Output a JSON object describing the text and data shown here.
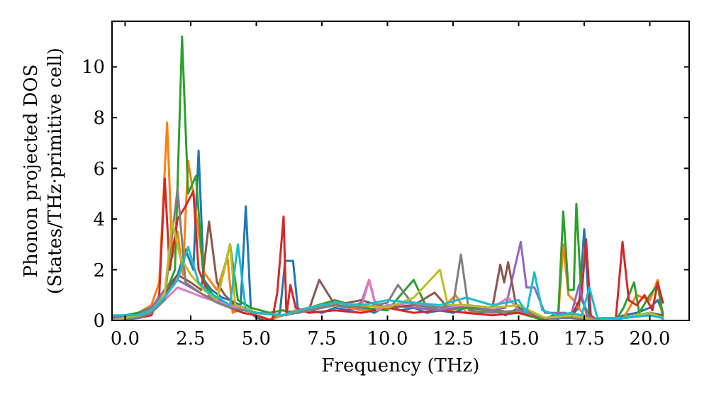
{
  "chart_data": {
    "type": "line",
    "xlabel": "Frequency (THz)",
    "ylabel": "Phonon projected DOS\n(States/THz·primitive cell)",
    "xlim": [
      -0.5,
      21.5
    ],
    "ylim": [
      0,
      11.8
    ],
    "xticks": [
      {
        "value": 0,
        "label": "0.0"
      },
      {
        "value": 2.5,
        "label": "2.5"
      },
      {
        "value": 5,
        "label": "5.0"
      },
      {
        "value": 7.5,
        "label": "7.5"
      },
      {
        "value": 10,
        "label": "10.0"
      },
      {
        "value": 12.5,
        "label": "12.5"
      },
      {
        "value": 15,
        "label": "15.0"
      },
      {
        "value": 17.5,
        "label": "17.5"
      },
      {
        "value": 20,
        "label": "20.0"
      }
    ],
    "yticks": [
      0,
      2,
      4,
      6,
      8,
      10
    ],
    "grid": false,
    "marker": "none",
    "line_style": "solid",
    "series": [
      {
        "color": "#1f77b4",
        "x": [
          -0.5,
          0,
          0.5,
          1,
          1.5,
          2,
          2.3,
          2.6,
          2.8,
          3,
          3.3,
          3.7,
          4,
          4.4,
          4.6,
          4.8,
          5,
          5.5,
          5.9,
          6.1,
          6.4,
          6.6,
          7,
          7.5,
          8,
          8.5,
          9,
          9.5,
          10,
          10.5,
          11,
          11.5,
          12,
          12.5,
          13,
          13.5,
          14,
          14.5,
          15,
          15.5,
          16,
          16.3,
          16.7,
          17,
          17.3,
          17.5,
          17.7,
          18,
          18.5,
          19,
          19.5,
          20,
          20.3,
          20.5
        ],
        "values": [
          0.2,
          0.1,
          0.3,
          0.5,
          1.2,
          1.8,
          2.8,
          2.0,
          6.7,
          1.6,
          1.2,
          0.9,
          0.8,
          0.6,
          4.5,
          0.3,
          0.1,
          0.0,
          0.3,
          2.35,
          2.35,
          0.3,
          0.4,
          0.3,
          0.5,
          0.4,
          0.5,
          0.3,
          0.6,
          0.4,
          0.5,
          0.3,
          0.4,
          0.3,
          0.5,
          0.3,
          0.4,
          0.2,
          0.5,
          0.3,
          0,
          0.2,
          0.3,
          0.2,
          0.5,
          3.6,
          0.2,
          0,
          0,
          0.2,
          0.3,
          0.5,
          0.8,
          0.3
        ]
      },
      {
        "color": "#ff7f0e",
        "x": [
          -0.5,
          0.5,
          1,
          1.3,
          1.6,
          1.8,
          2,
          2.2,
          2.4,
          2.6,
          3,
          3.5,
          3.9,
          4.1,
          4.5,
          5,
          5.5,
          6,
          6.5,
          7,
          8,
          9,
          10,
          11,
          12,
          12.6,
          13,
          14,
          15,
          16,
          16.5,
          16.7,
          16.9,
          17.1,
          17.5,
          18,
          19,
          19.5,
          20,
          20.3,
          20.5
        ],
        "values": [
          0.1,
          0.3,
          0.6,
          1.5,
          7.8,
          2.5,
          3.5,
          1.8,
          6.3,
          5.0,
          1.9,
          1.2,
          2.5,
          0.3,
          0.5,
          0.2,
          0,
          0.2,
          0.4,
          0.5,
          0.6,
          0.4,
          0.5,
          0.6,
          0.4,
          1.0,
          0.3,
          0.4,
          0.3,
          0,
          0,
          3.0,
          1.0,
          0.8,
          0.2,
          0,
          0.1,
          1.0,
          0.8,
          1.6,
          0
        ]
      },
      {
        "color": "#2ca02c",
        "x": [
          -0.5,
          0.5,
          1,
          1.5,
          1.9,
          2.17,
          2.4,
          2.7,
          3,
          3.5,
          4,
          4.3,
          4.8,
          5.5,
          6,
          6.5,
          7,
          8,
          9,
          10,
          11,
          11.5,
          12,
          13,
          14,
          15,
          16,
          16.5,
          16.7,
          16.9,
          17.1,
          17.2,
          17.4,
          17.7,
          18,
          18.7,
          19,
          19.4,
          19.6,
          20,
          20.3,
          20.5
        ],
        "values": [
          0.1,
          0.3,
          0.5,
          1.0,
          2.0,
          11.2,
          5.0,
          5.7,
          1.5,
          0.8,
          3.0,
          0.8,
          0.5,
          0.3,
          0.4,
          0.3,
          0.5,
          0.8,
          0.5,
          0.4,
          1.6,
          0.5,
          0.4,
          0.5,
          0.4,
          0.3,
          0,
          0,
          4.3,
          1.2,
          1.2,
          4.6,
          0.8,
          0.2,
          0,
          0,
          0.5,
          1.5,
          0.3,
          1.0,
          1.4,
          0.2
        ]
      },
      {
        "color": "#d62728",
        "x": [
          -0.5,
          0.5,
          1,
          1.3,
          1.51,
          1.7,
          2,
          2.3,
          2.6,
          2.8,
          3.2,
          3.6,
          4,
          4.5,
          5,
          5.6,
          5.8,
          6.04,
          6.15,
          6.3,
          6.5,
          7,
          8,
          9,
          10,
          11,
          12,
          13,
          14,
          15,
          16,
          17,
          17.4,
          17.57,
          17.75,
          18,
          18.7,
          18.96,
          19.2,
          19.5,
          19.8,
          20.1,
          20.3,
          20.5
        ],
        "values": [
          0,
          0.1,
          0.2,
          1.0,
          5.6,
          2.0,
          4.0,
          4.5,
          5.1,
          2.0,
          1.0,
          0.8,
          0.5,
          0.3,
          0.2,
          0,
          1.1,
          4.1,
          0.2,
          1.4,
          0.5,
          0.3,
          0.4,
          0.3,
          0.5,
          0.3,
          0.4,
          0.3,
          0.2,
          0.3,
          0.1,
          0.1,
          1.0,
          3.2,
          0.2,
          0,
          0,
          3.1,
          0.8,
          0.6,
          1.0,
          0.4,
          1.5,
          0.7
        ]
      },
      {
        "color": "#9467bd",
        "x": [
          -0.5,
          0.5,
          1,
          1.5,
          2,
          2.5,
          3,
          3.5,
          4,
          4.5,
          5,
          6,
          7,
          8,
          8.5,
          9,
          9.3,
          9.6,
          10,
          11,
          12,
          13,
          14,
          14.5,
          15.08,
          15.3,
          15.6,
          16,
          16.8,
          17,
          17.3,
          17.6,
          18,
          19,
          20,
          20.5
        ],
        "values": [
          0.1,
          0.2,
          0.5,
          1.2,
          1.6,
          1.3,
          1.0,
          0.8,
          0.6,
          0.5,
          0.3,
          0.2,
          0.4,
          0.6,
          0.5,
          0.7,
          1.6,
          0.4,
          0.6,
          0.5,
          0.4,
          0.6,
          0.4,
          0.5,
          3.1,
          1.3,
          1.3,
          0.3,
          0.3,
          0.2,
          1.4,
          0.2,
          0,
          0.1,
          0.3,
          0.2
        ]
      },
      {
        "color": "#8c564b",
        "x": [
          -0.5,
          0.5,
          1,
          1.5,
          2,
          2.5,
          2.9,
          3.2,
          3.5,
          3.8,
          4.2,
          5,
          6,
          7,
          7.4,
          8,
          9,
          10,
          11,
          11.8,
          12.3,
          13,
          14,
          14.3,
          14.45,
          14.6,
          14.9,
          15.5,
          16,
          17,
          18,
          19,
          20,
          20.5
        ],
        "values": [
          0,
          0.2,
          0.4,
          1.0,
          1.8,
          1.5,
          1.2,
          3.9,
          1.5,
          1.0,
          0.6,
          0.3,
          0.2,
          0.4,
          1.6,
          0.6,
          0.8,
          0.5,
          0.6,
          1.1,
          0.5,
          0.6,
          0.5,
          2.2,
          1.5,
          2.3,
          0.6,
          0.3,
          0.1,
          0.2,
          0,
          0.1,
          0.3,
          0.2
        ]
      },
      {
        "color": "#e377c2",
        "x": [
          -0.5,
          0.5,
          1,
          1.5,
          2,
          2.5,
          3,
          4,
          5,
          6,
          7,
          8,
          9,
          9.3,
          9.6,
          10,
          11,
          12,
          13,
          14,
          14.6,
          15,
          16,
          17,
          18,
          19
        ],
        "values": [
          0,
          0.2,
          0.4,
          0.8,
          1.3,
          1.1,
          0.9,
          0.6,
          0.3,
          0.2,
          0.5,
          0.7,
          0.5,
          1.6,
          0.4,
          0.6,
          0.7,
          0.5,
          0.6,
          0.5,
          0.9,
          0.4,
          0.1,
          0.1,
          0,
          0.1
        ]
      },
      {
        "color": "#7f7f7f",
        "x": [
          -0.5,
          0.5,
          1,
          1.5,
          2,
          2.3,
          2.7,
          3,
          3.5,
          4,
          5,
          6,
          7,
          8,
          9,
          10,
          10.4,
          11,
          12,
          12.5,
          12.8,
          13.1,
          14,
          15,
          16,
          17,
          18,
          19,
          20,
          20.5
        ],
        "values": [
          0,
          0.1,
          0.3,
          0.8,
          5.2,
          1.5,
          1.2,
          1.0,
          0.7,
          0.5,
          0.3,
          0.2,
          0.4,
          0.6,
          0.5,
          0.7,
          1.4,
          0.6,
          0.5,
          0.6,
          2.6,
          0.4,
          0.3,
          0.4,
          0.1,
          0.1,
          0,
          0.1,
          0.2,
          0.1
        ]
      },
      {
        "color": "#bcbd22",
        "x": [
          -0.5,
          0.5,
          1,
          1.5,
          1.8,
          2.1,
          2.5,
          3,
          3.5,
          4,
          4.2,
          4.6,
          5,
          6,
          7,
          8,
          9,
          10,
          11,
          12,
          12.3,
          13,
          14,
          15,
          16,
          17,
          18,
          19,
          20,
          20.5
        ],
        "values": [
          0,
          0.2,
          0.4,
          1.0,
          3.9,
          2.5,
          1.8,
          1.2,
          0.8,
          3.0,
          0.6,
          0.5,
          0.3,
          0.2,
          0.5,
          0.7,
          0.6,
          0.5,
          0.9,
          2.0,
          0.6,
          0.6,
          0.5,
          0.6,
          0.1,
          0.2,
          0,
          0.1,
          0.3,
          0.1
        ]
      },
      {
        "color": "#17becf",
        "x": [
          -0.5,
          0.5,
          1,
          1.5,
          2,
          2.4,
          2.8,
          3.2,
          3.7,
          4,
          4.3,
          4.6,
          5,
          6,
          7,
          8,
          9,
          10,
          11,
          12,
          13,
          14,
          15,
          15.3,
          15.6,
          15.9,
          16.5,
          17,
          17.4,
          17.7,
          18,
          19,
          20,
          20.5
        ],
        "values": [
          0.2,
          0.2,
          0.4,
          0.9,
          1.6,
          2.9,
          1.5,
          1.1,
          0.8,
          0.6,
          3.0,
          0.4,
          0.3,
          0.2,
          0.5,
          0.7,
          0.6,
          0.8,
          0.7,
          0.6,
          0.9,
          0.6,
          0.8,
          0.3,
          1.9,
          0.4,
          0.2,
          0.3,
          0.2,
          1.3,
          0.1,
          0.1,
          0.2,
          0.1
        ]
      }
    ]
  }
}
